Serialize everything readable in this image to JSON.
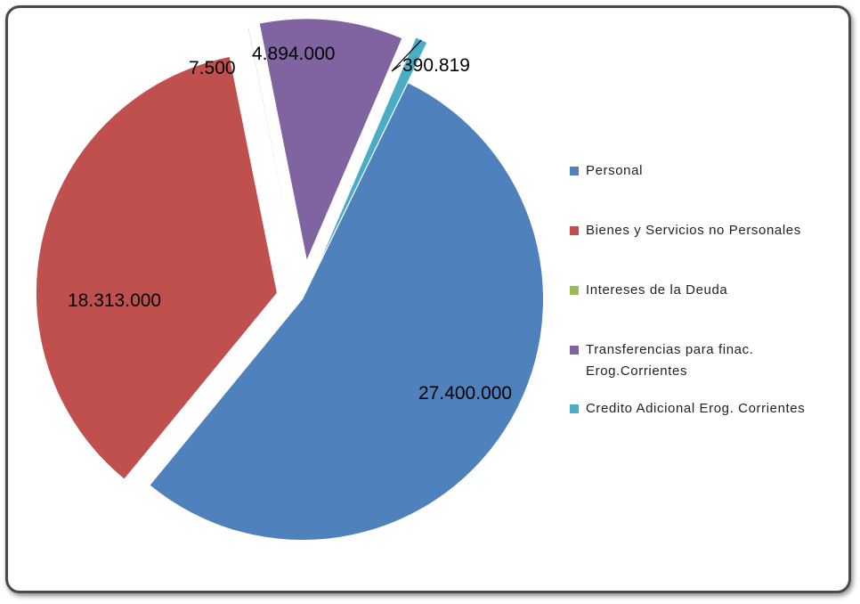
{
  "chart_data": {
    "type": "pie",
    "exploded": true,
    "legend_position": "right",
    "series": [
      {
        "name": "Personal",
        "value": 27400000,
        "label": "27.400.000",
        "color": "#4F81BD"
      },
      {
        "name": "Bienes y Servicios no Personales",
        "value": 18313000,
        "label": "18.313.000",
        "color": "#C0504D"
      },
      {
        "name": "Intereses de la Deuda",
        "value": 7500,
        "label": "7.500",
        "color": "#9BBB59"
      },
      {
        "name": "Transferencias para finac. Erog.Corrientes",
        "value": 4894000,
        "label": "4.894.000",
        "color": "#8064A2"
      },
      {
        "name": "Credito Adicional Erog. Corrientes",
        "value": 390819,
        "label": "390.819",
        "color": "#4BACC6"
      }
    ]
  }
}
